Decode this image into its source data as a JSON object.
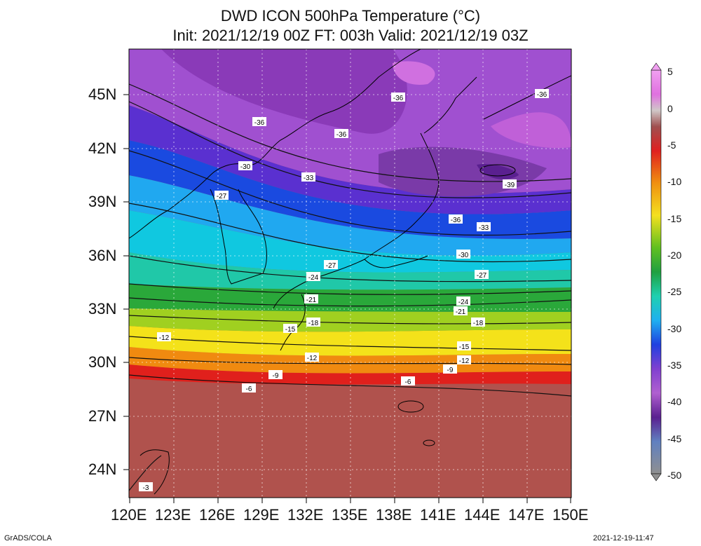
{
  "title_line1": "DWD ICON 500hPa Temperature (°C)",
  "title_line2": "Init: 2021/12/19 00Z  FT: 003h  Valid: 2021/12/19 03Z",
  "lat_labels": [
    "45N",
    "42N",
    "39N",
    "36N",
    "33N",
    "30N",
    "27N",
    "24N"
  ],
  "lon_labels": [
    "120E",
    "123E",
    "126E",
    "129E",
    "132E",
    "135E",
    "138E",
    "141E",
    "144E",
    "147E",
    "150E"
  ],
  "colorbar_labels": [
    "5",
    "0",
    "-5",
    "-10",
    "-15",
    "-20",
    "-25",
    "-30",
    "-35",
    "-40",
    "-45",
    "-50"
  ],
  "contour_labels": [
    "-36",
    "-36",
    "-36",
    "-36",
    "-30",
    "-33",
    "-27",
    "-39",
    "-36",
    "-33",
    "-30",
    "-27",
    "-27",
    "-24",
    "-24",
    "-21",
    "-21",
    "-18",
    "-18",
    "-15",
    "-15",
    "-12",
    "-12",
    "-12",
    "-9",
    "-9",
    "-6",
    "-6",
    "-3"
  ],
  "footer_left": "GrADS/COLA",
  "footer_right": "2021-12-19-11:47",
  "colors": {
    "warm": "#b0524d",
    "red": "#e0201c",
    "orange": "#f08a10",
    "yellow": "#f4e21a",
    "green": "#3aa83a",
    "cyan": "#10c8d8",
    "blue": "#1a4ae0",
    "purple": "#9a48c8",
    "deep_purple": "#6a2a98"
  }
}
